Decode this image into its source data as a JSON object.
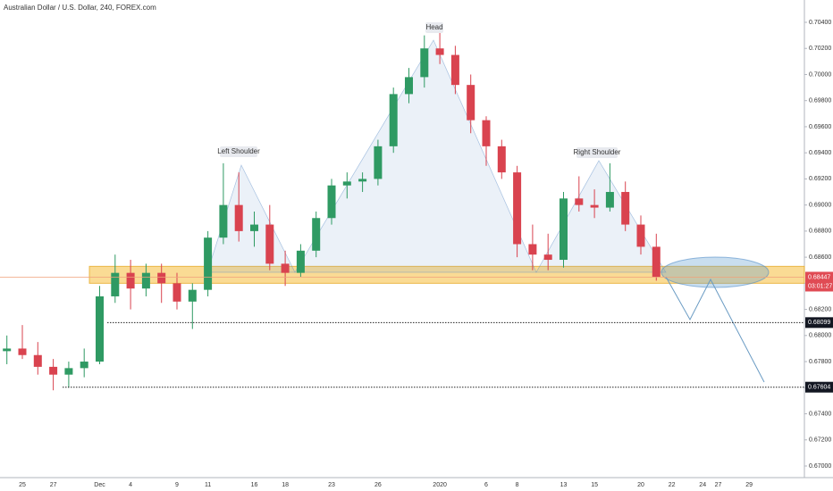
{
  "chart_data": {
    "type": "candlestick",
    "title": "Australian Dollar / U.S. Dollar, 240, FOREX.com",
    "categories": [
      null,
      "25",
      null,
      "27",
      null,
      null,
      "Dec",
      null,
      "4",
      null,
      null,
      "9",
      null,
      "11",
      null,
      null,
      "16",
      null,
      "18",
      null,
      null,
      "23",
      null,
      null,
      "26",
      null,
      null,
      null,
      "2020",
      null,
      null,
      "6",
      null,
      "8",
      null,
      null,
      "13",
      null,
      "15",
      null,
      null,
      "20",
      null,
      "22",
      null,
      "24",
      "27",
      null,
      "29",
      null
    ],
    "open": [
      0.6788,
      0.679,
      0.6785,
      0.6776,
      0.677,
      0.6775,
      0.678,
      0.683,
      0.6848,
      0.6836,
      0.6848,
      0.684,
      0.6826,
      0.6835,
      0.6875,
      0.69,
      0.688,
      0.6885,
      0.6855,
      0.6848,
      0.6865,
      0.689,
      0.6915,
      0.6918,
      0.692,
      0.6945,
      0.6985,
      0.6998,
      0.702,
      0.7015,
      0.6992,
      0.6965,
      0.6945,
      0.6925,
      0.687,
      0.6862,
      0.6858,
      0.6905,
      0.69,
      0.6898,
      0.691,
      0.6885,
      0.6868,
      null,
      null,
      null,
      null,
      null,
      null,
      null
    ],
    "high": [
      0.68,
      0.6808,
      0.6795,
      0.6782,
      0.678,
      0.679,
      0.6838,
      0.6862,
      0.6858,
      0.6855,
      0.6855,
      0.6848,
      0.684,
      0.688,
      0.6932,
      0.6925,
      0.6895,
      0.69,
      0.6865,
      0.687,
      0.6895,
      0.692,
      0.6925,
      0.6925,
      0.695,
      0.699,
      0.7005,
      0.703,
      0.7032,
      0.7022,
      0.7,
      0.6968,
      0.695,
      0.693,
      0.6885,
      0.6878,
      0.691,
      0.6922,
      0.6912,
      0.6932,
      0.6918,
      0.6892,
      0.6878,
      null,
      null,
      null,
      null,
      null,
      null,
      null
    ],
    "low": [
      0.6778,
      0.6782,
      0.677,
      0.6758,
      0.676,
      0.6768,
      0.6778,
      0.6825,
      0.682,
      0.683,
      0.6825,
      0.682,
      0.6805,
      0.683,
      0.687,
      0.6872,
      0.6868,
      0.685,
      0.6838,
      0.6845,
      0.686,
      0.6885,
      0.6905,
      0.691,
      0.6915,
      0.694,
      0.6978,
      0.699,
      0.7008,
      0.6985,
      0.6955,
      0.693,
      0.692,
      0.686,
      0.685,
      0.685,
      0.6852,
      0.6895,
      0.689,
      0.6895,
      0.688,
      0.6862,
      0.6842,
      null,
      null,
      null,
      null,
      null,
      null,
      null
    ],
    "close": [
      0.679,
      0.6785,
      0.6776,
      0.677,
      0.6775,
      0.678,
      0.683,
      0.6848,
      0.6836,
      0.6848,
      0.684,
      0.6826,
      0.6835,
      0.6875,
      0.69,
      0.688,
      0.6885,
      0.6855,
      0.6848,
      0.6865,
      0.689,
      0.6915,
      0.6918,
      0.692,
      0.6945,
      0.6985,
      0.6998,
      0.702,
      0.7015,
      0.6992,
      0.6965,
      0.6945,
      0.6925,
      0.687,
      0.6862,
      0.6858,
      0.6905,
      0.69,
      0.6898,
      0.691,
      0.6885,
      0.6868,
      0.6845,
      null,
      null,
      null,
      null,
      null,
      null,
      null
    ],
    "up_color": "#2f9a63",
    "down_color": "#d9434f",
    "ylim": [
      0.66911,
      0.70571
    ],
    "yticks": [
      {
        "value": 0.67,
        "label": "0.67000"
      },
      {
        "value": 0.672,
        "label": "0.67200"
      },
      {
        "value": 0.674,
        "label": "0.67400"
      },
      {
        "value": 0.676,
        "label": "0.67600"
      },
      {
        "value": 0.678,
        "label": "0.67800"
      },
      {
        "value": 0.68,
        "label": "0.68000"
      },
      {
        "value": 0.682,
        "label": "0.68200"
      },
      {
        "value": 0.684,
        "label": "0.68400"
      },
      {
        "value": 0.686,
        "label": "0.68600"
      },
      {
        "value": 0.688,
        "label": "0.68800"
      },
      {
        "value": 0.69,
        "label": "0.69000"
      },
      {
        "value": 0.692,
        "label": "0.69200"
      },
      {
        "value": 0.694,
        "label": "0.69400"
      },
      {
        "value": 0.696,
        "label": "0.69600"
      },
      {
        "value": 0.698,
        "label": "0.69800"
      },
      {
        "value": 0.7,
        "label": "0.70000"
      },
      {
        "value": 0.702,
        "label": "0.70200"
      },
      {
        "value": 0.704,
        "label": "0.70400"
      }
    ],
    "grid": false,
    "zone": [
      0.684,
      0.6853
    ],
    "last_price": {
      "value": 0.68447,
      "label": "0.68447"
    },
    "countdown": "03:01:27",
    "levels": [
      {
        "value": 0.68099,
        "label": "0.68099"
      },
      {
        "value": 0.67604,
        "label": "0.67604"
      }
    ],
    "annotations": [
      "Head",
      "Left Shoulder",
      "Right Shoulder"
    ]
  }
}
